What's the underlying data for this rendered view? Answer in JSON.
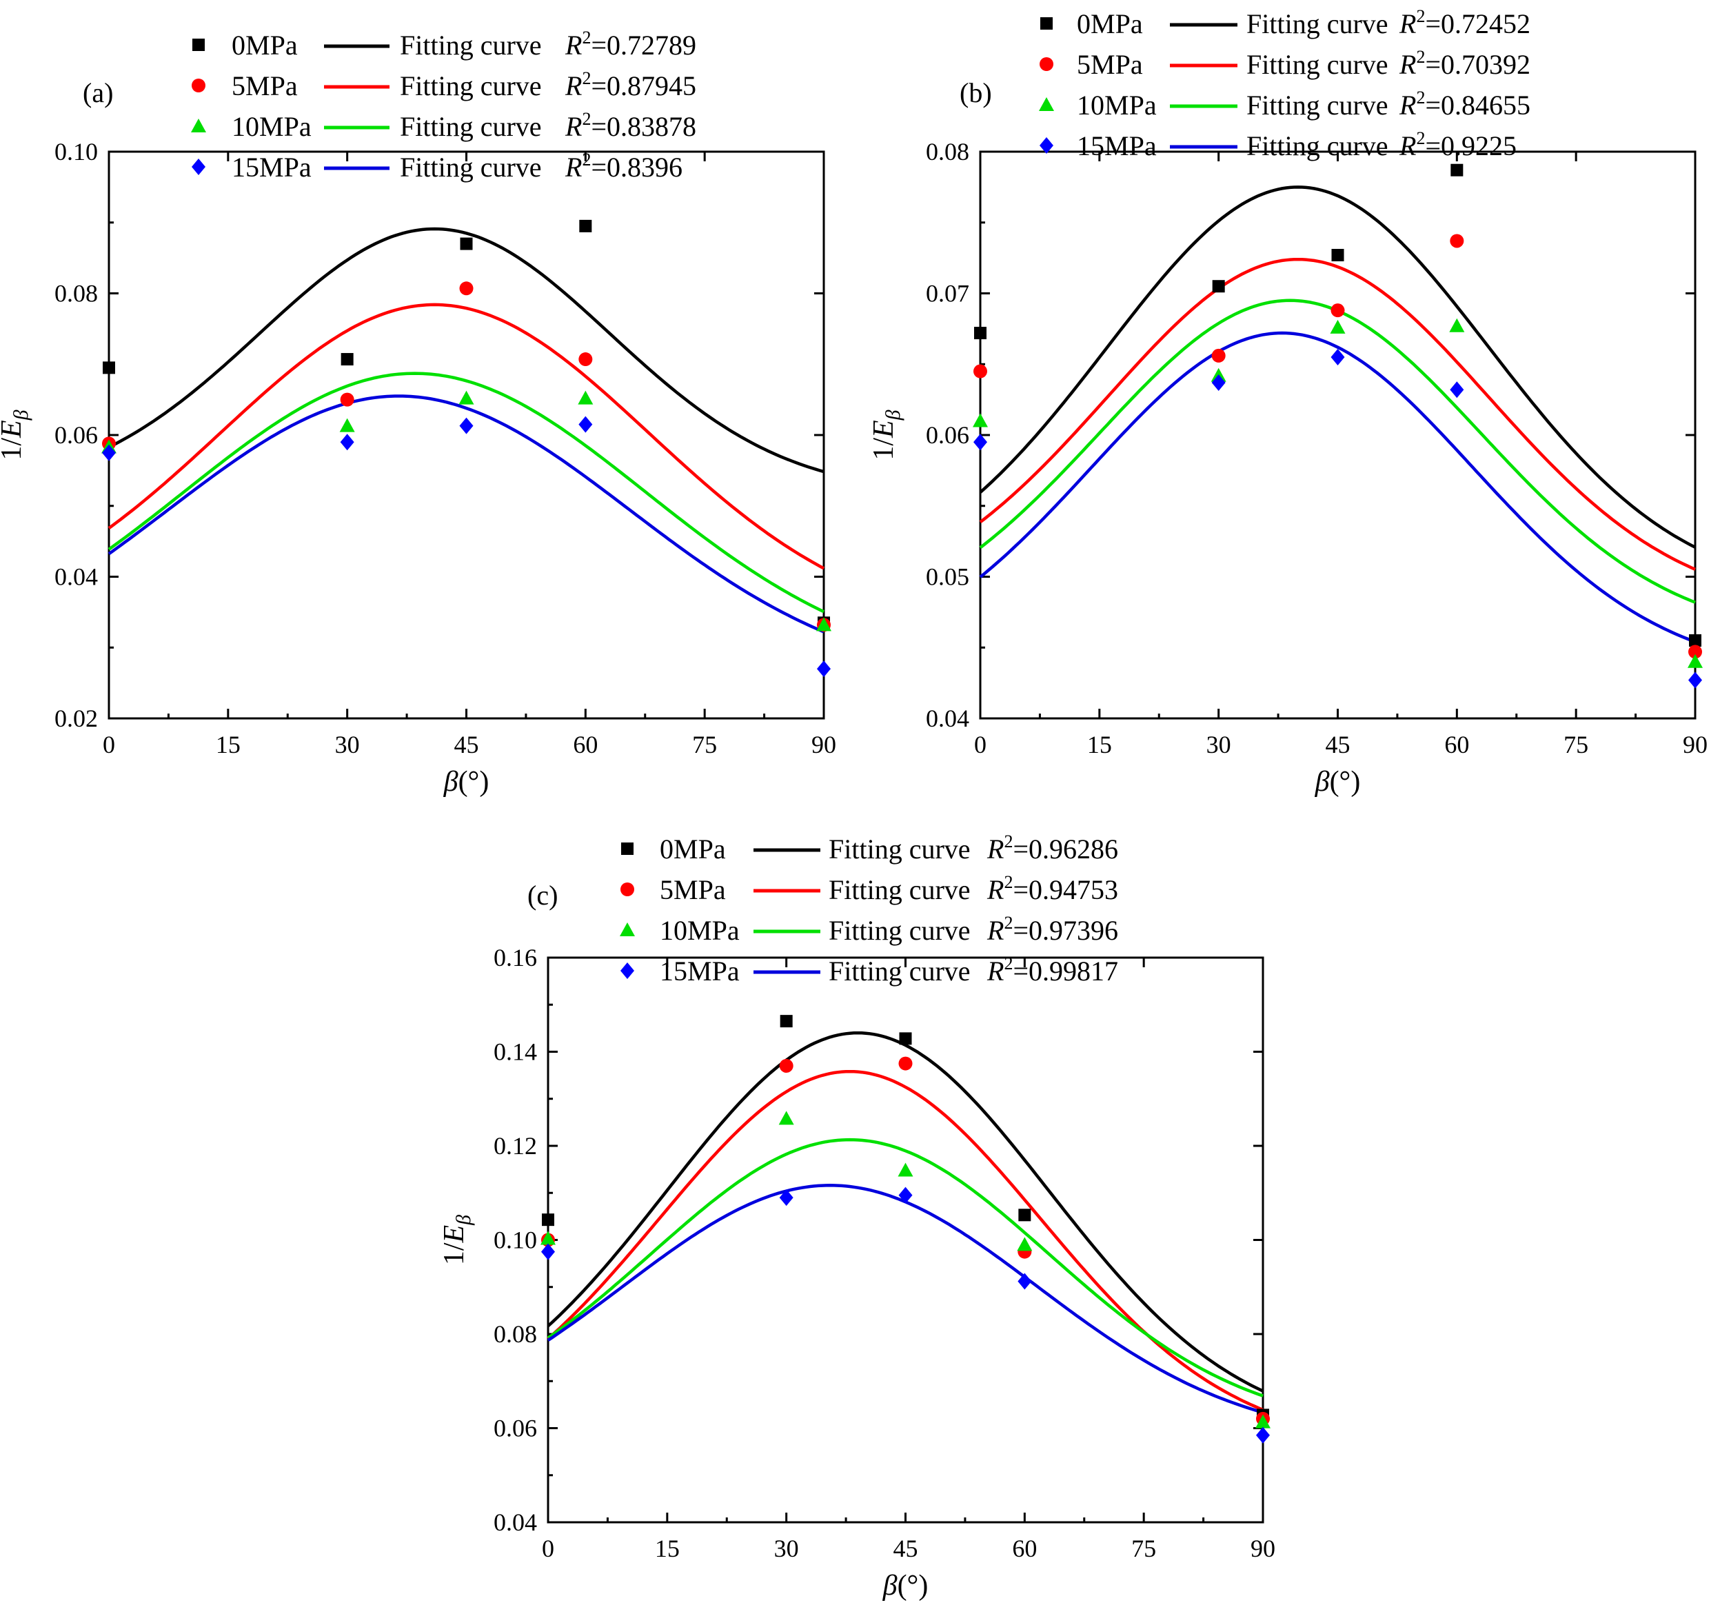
{
  "figure": {
    "marker_colors": [
      "#000000",
      "#ff0000",
      "#00dd00",
      "#0000ff"
    ],
    "curve_colors": [
      "#000000",
      "#ff0000",
      "#00e000",
      "#0000dd"
    ]
  },
  "chart_data": [
    {
      "type": "scatter",
      "panel_label": "(a)",
      "xlabel_symbol": "β",
      "xlabel_unit": "(°)",
      "ylabel_prefix": "1/",
      "ylabel_symbol": "E",
      "ylabel_subscript": "β",
      "x": [
        0,
        30,
        45,
        60,
        90
      ],
      "xlim": [
        0,
        90
      ],
      "ylim": [
        0.02,
        0.1
      ],
      "xticks": [
        "0",
        "15",
        "30",
        "45",
        "60",
        "75",
        "90"
      ],
      "xtick_values": [
        0,
        15,
        30,
        45,
        60,
        75,
        90
      ],
      "yticks": [
        "0.02",
        "0.04",
        "0.06",
        "0.08",
        "0.10"
      ],
      "ytick_values": [
        0.02,
        0.04,
        0.06,
        0.08,
        0.1
      ],
      "series": [
        {
          "name": "0MPa",
          "marker": "square",
          "values": [
            0.0695,
            0.0707,
            0.087,
            0.0895,
            0.0335
          ],
          "fit_label": "Fitting curve",
          "r2": "=0.72789",
          "fit": {
            "c": 0.0517,
            "a": 0.0374,
            "mu": 41,
            "sigma": 22
          }
        },
        {
          "name": "5MPa",
          "marker": "circle",
          "values": [
            0.0588,
            0.065,
            0.0807,
            0.0707,
            0.0332
          ],
          "fit_label": "Fitting curve",
          "r2": "=0.87945",
          "fit": {
            "c": 0.0323,
            "a": 0.0461,
            "mu": 41,
            "sigma": 27
          }
        },
        {
          "name": "10MPa",
          "marker": "triangle",
          "values": [
            0.0583,
            0.0613,
            0.0652,
            0.0652,
            0.0332
          ],
          "fit_label": "Fitting curve",
          "r2": "=0.83878",
          "fit": {
            "c": 0.0263,
            "a": 0.0424,
            "mu": 38.5,
            "sigma": 29
          }
        },
        {
          "name": "15MPa",
          "marker": "diamond",
          "values": [
            0.0575,
            0.059,
            0.0613,
            0.0615,
            0.027
          ],
          "fit_label": "Fitting curve",
          "r2": "=0.8396",
          "fit": {
            "c": 0.0248,
            "a": 0.0407,
            "mu": 36.5,
            "sigma": 29
          }
        }
      ]
    },
    {
      "type": "scatter",
      "panel_label": "(b)",
      "xlabel_symbol": "β",
      "xlabel_unit": "(°)",
      "ylabel_prefix": "1/",
      "ylabel_symbol": "E",
      "ylabel_subscript": "β",
      "x": [
        0,
        30,
        45,
        60,
        90
      ],
      "xlim": [
        0,
        90
      ],
      "ylim": [
        0.04,
        0.08
      ],
      "xticks": [
        "0",
        "15",
        "30",
        "45",
        "60",
        "75",
        "90"
      ],
      "xtick_values": [
        0,
        15,
        30,
        45,
        60,
        75,
        90
      ],
      "yticks": [
        "0.04",
        "0.05",
        "0.06",
        "0.07",
        "0.08"
      ],
      "ytick_values": [
        0.04,
        0.05,
        0.06,
        0.07,
        0.08
      ],
      "series": [
        {
          "name": "0MPa",
          "marker": "square",
          "values": [
            0.0672,
            0.0705,
            0.0727,
            0.0787,
            0.0455
          ],
          "fit_label": "Fitting curve",
          "r2": "=0.72452",
          "fit": {
            "c": 0.0488,
            "a": 0.0287,
            "mu": 40,
            "sigma": 24
          }
        },
        {
          "name": "5MPa",
          "marker": "circle",
          "values": [
            0.0645,
            0.0656,
            0.0688,
            0.0737,
            0.0447
          ],
          "fit_label": "Fitting curve",
          "r2": "=0.70392",
          "fit": {
            "c": 0.0477,
            "a": 0.0247,
            "mu": 40,
            "sigma": 24
          }
        },
        {
          "name": "10MPa",
          "marker": "triangle",
          "values": [
            0.061,
            0.0642,
            0.0676,
            0.0677,
            0.044
          ],
          "fit_label": "Fitting curve",
          "r2": "=0.84655",
          "fit": {
            "c": 0.0457,
            "a": 0.0238,
            "mu": 39,
            "sigma": 24
          }
        },
        {
          "name": "15MPa",
          "marker": "diamond",
          "values": [
            0.0595,
            0.0637,
            0.0655,
            0.0632,
            0.0427
          ],
          "fit_label": "Fitting curve",
          "r2": "=0.9225",
          "fit": {
            "c": 0.0431,
            "a": 0.0241,
            "mu": 38,
            "sigma": 24
          }
        }
      ]
    },
    {
      "type": "scatter",
      "panel_label": "(c)",
      "xlabel_symbol": "β",
      "xlabel_unit": "(°)",
      "ylabel_prefix": "1/",
      "ylabel_symbol": "E",
      "ylabel_subscript": "β",
      "x": [
        0,
        30,
        45,
        60,
        90
      ],
      "xlim": [
        0,
        90
      ],
      "ylim": [
        0.04,
        0.16
      ],
      "xticks": [
        "0",
        "15",
        "30",
        "45",
        "60",
        "75",
        "90"
      ],
      "xtick_values": [
        0,
        15,
        30,
        45,
        60,
        75,
        90
      ],
      "yticks": [
        "0.04",
        "0.06",
        "0.08",
        "0.10",
        "0.12",
        "0.14",
        "0.16"
      ],
      "ytick_values": [
        0.04,
        0.06,
        0.08,
        0.1,
        0.12,
        0.14,
        0.16
      ],
      "series": [
        {
          "name": "0MPa",
          "marker": "square",
          "values": [
            0.1043,
            0.1465,
            0.1428,
            0.1053,
            0.0628
          ],
          "fit_label": "Fitting curve",
          "r2": "=0.96286",
          "fit": {
            "c": 0.059,
            "a": 0.085,
            "mu": 39,
            "sigma": 24
          }
        },
        {
          "name": "5MPa",
          "marker": "circle",
          "values": [
            0.1,
            0.137,
            0.1375,
            0.0975,
            0.062
          ],
          "fit_label": "Fitting curve",
          "r2": "=0.94753",
          "fit": {
            "c": 0.0563,
            "a": 0.0795,
            "mu": 38,
            "sigma": 24
          }
        },
        {
          "name": "10MPa",
          "marker": "triangle",
          "values": [
            0.1003,
            0.1258,
            0.1148,
            0.099,
            0.0613
          ],
          "fit_label": "Fitting curve",
          "r2": "=0.97396",
          "fit": {
            "c": 0.0598,
            "a": 0.0615,
            "mu": 38,
            "sigma": 25
          }
        },
        {
          "name": "15MPa",
          "marker": "diamond",
          "values": [
            0.0975,
            0.109,
            0.1095,
            0.0912,
            0.0585
          ],
          "fit_label": "Fitting curve",
          "r2": "=0.99817",
          "fit": {
            "c": 0.0573,
            "a": 0.0543,
            "mu": 35.5,
            "sigma": 26
          }
        }
      ]
    }
  ]
}
